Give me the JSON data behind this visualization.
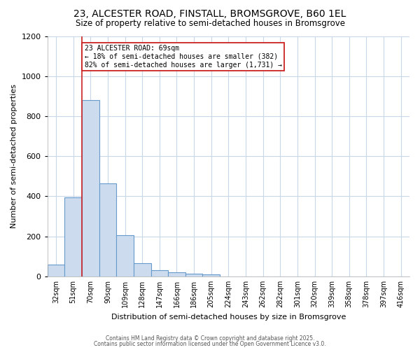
{
  "title1": "23, ALCESTER ROAD, FINSTALL, BROMSGROVE, B60 1EL",
  "title2": "Size of property relative to semi-detached houses in Bromsgrove",
  "xlabel": "Distribution of semi-detached houses by size in Bromsgrove",
  "ylabel": "Number of semi-detached properties",
  "categories": [
    "32sqm",
    "51sqm",
    "70sqm",
    "90sqm",
    "109sqm",
    "128sqm",
    "147sqm",
    "166sqm",
    "186sqm",
    "205sqm",
    "224sqm",
    "243sqm",
    "262sqm",
    "282sqm",
    "301sqm",
    "320sqm",
    "339sqm",
    "358sqm",
    "378sqm",
    "397sqm",
    "416sqm"
  ],
  "values": [
    60,
    395,
    880,
    465,
    205,
    65,
    32,
    20,
    14,
    10,
    0,
    0,
    0,
    0,
    0,
    0,
    0,
    0,
    0,
    0,
    0
  ],
  "bar_color": "#ccdcee",
  "bar_edge_color": "#6699cc",
  "property_bin_index": 2,
  "annotation_title": "23 ALCESTER ROAD: 69sqm",
  "annotation_line1": "← 18% of semi-detached houses are smaller (382)",
  "annotation_line2": "82% of semi-detached houses are larger (1,731) →",
  "red_line_color": "#cc2222",
  "annotation_box_color": "#ffffff",
  "annotation_box_edge": "#cc2222",
  "background_color": "#ffffff",
  "grid_color": "#c8d8e8",
  "ylim": [
    0,
    1200
  ],
  "yticks": [
    0,
    200,
    400,
    600,
    800,
    1000,
    1200
  ],
  "footer1": "Contains HM Land Registry data © Crown copyright and database right 2025.",
  "footer2": "Contains public sector information licensed under the Open Government Licence v3.0."
}
